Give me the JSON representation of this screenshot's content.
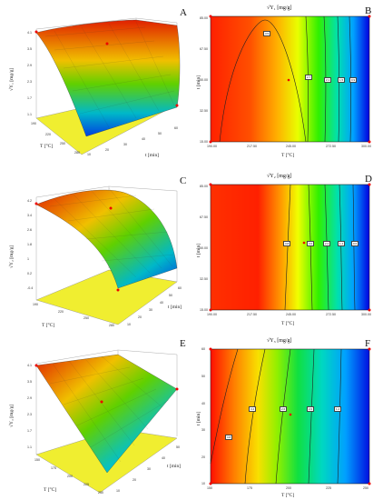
{
  "panels": [
    {
      "letter": "A",
      "zlabel": "√Y₁ [mg/g]",
      "xlabel": "T [°C]",
      "ylabel": "t [min]",
      "zticks": [
        "4.1",
        "3.5",
        "2.9",
        "2.3",
        "1.7",
        "1.1"
      ],
      "xticks": [
        "190",
        "220",
        "250",
        "280"
      ],
      "yticks": [
        "10",
        "20",
        "30",
        "40",
        "50",
        "60"
      ]
    },
    {
      "letter": "B",
      "title": "√Y₁ [mg/g]",
      "xlabel": "T [°C]",
      "ylabel": "t [min]",
      "xticks": [
        "190.00",
        "217.50",
        "245.00",
        "272.50",
        "300.00"
      ],
      "yticks": [
        "15.00",
        "32.50",
        "50.00",
        "67.50",
        "85.00"
      ],
      "contours": [
        "3.5",
        "2.7",
        "2.1",
        "1.5",
        "0.9"
      ]
    },
    {
      "letter": "C",
      "zlabel": "√Y₂ [mg/g]",
      "xlabel": "T [°C]",
      "ylabel": "t [min]",
      "zticks": [
        "4.2",
        "3.4",
        "2.6",
        "1.8",
        "1",
        "0.2",
        "-0.4"
      ],
      "xticks": [
        "190",
        "220",
        "250",
        "280"
      ],
      "yticks": [
        "10",
        "20",
        "30",
        "40",
        "50",
        "60"
      ]
    },
    {
      "letter": "D",
      "title": "√Y₂ [mg/g]",
      "xlabel": "T [°C]",
      "ylabel": "t [min]",
      "xticks": [
        "190.00",
        "217.50",
        "245.00",
        "272.50",
        "300.00"
      ],
      "yticks": [
        "15.00",
        "32.50",
        "50.00",
        "67.50",
        "85.00"
      ],
      "contours": [
        "3.8",
        "3.0",
        "2.2",
        "1.4",
        "0.6"
      ]
    },
    {
      "letter": "E",
      "zlabel": "√Y₃ [mg/g]",
      "xlabel": "T [°C]",
      "ylabel": "t [min]",
      "zticks": [
        "4.1",
        "3.5",
        "2.9",
        "2.3",
        "1.7",
        "1.1"
      ],
      "xticks": [
        "150",
        "175",
        "200",
        "225",
        "250"
      ],
      "yticks": [
        "10",
        "20",
        "30",
        "40",
        "50"
      ],
      "dummy": ""
    },
    {
      "letter": "F",
      "title": "√Y₃ [mg/g]",
      "xlabel": "T [°C]",
      "ylabel": "t [min]",
      "xticks": [
        "150",
        "175",
        "200",
        "225",
        "250"
      ],
      "yticks": [
        "10",
        "20",
        "30",
        "40",
        "50",
        "60"
      ],
      "contours": [
        "3.8",
        "3.2",
        "2.6",
        "2.0",
        "1.4"
      ]
    }
  ],
  "chart_data": [
    {
      "type": "heatmap",
      "panel": "A",
      "surface": "3d",
      "note_x": "T [°C]",
      "note_y": "t [min]",
      "shape": "dome peaking near low-mid T, falling at high T"
    },
    {
      "type": "heatmap",
      "panel": "B",
      "x_range": [
        190,
        300
      ],
      "y_range": [
        15,
        85
      ],
      "colors": [
        "#ff0000",
        "#ffff00",
        "#00ff00",
        "#0000ff"
      ]
    },
    {
      "type": "heatmap",
      "panel": "C",
      "surface": "3d",
      "note_x": "T [°C]",
      "note_y": "t [min]"
    },
    {
      "type": "heatmap",
      "panel": "D",
      "x_range": [
        190,
        300
      ],
      "y_range": [
        15,
        85
      ],
      "colors": [
        "#ff0000",
        "#ffff00",
        "#00ff00",
        "#0000ff"
      ]
    },
    {
      "type": "heatmap",
      "panel": "E",
      "surface": "3d",
      "note_x": "T [°C]",
      "note_y": "t [min]"
    },
    {
      "type": "heatmap",
      "panel": "F",
      "x_range": [
        150,
        250
      ],
      "y_range": [
        10,
        60
      ],
      "colors": [
        "#ff0000",
        "#ffff00",
        "#00ff00",
        "#0000ff"
      ]
    }
  ]
}
